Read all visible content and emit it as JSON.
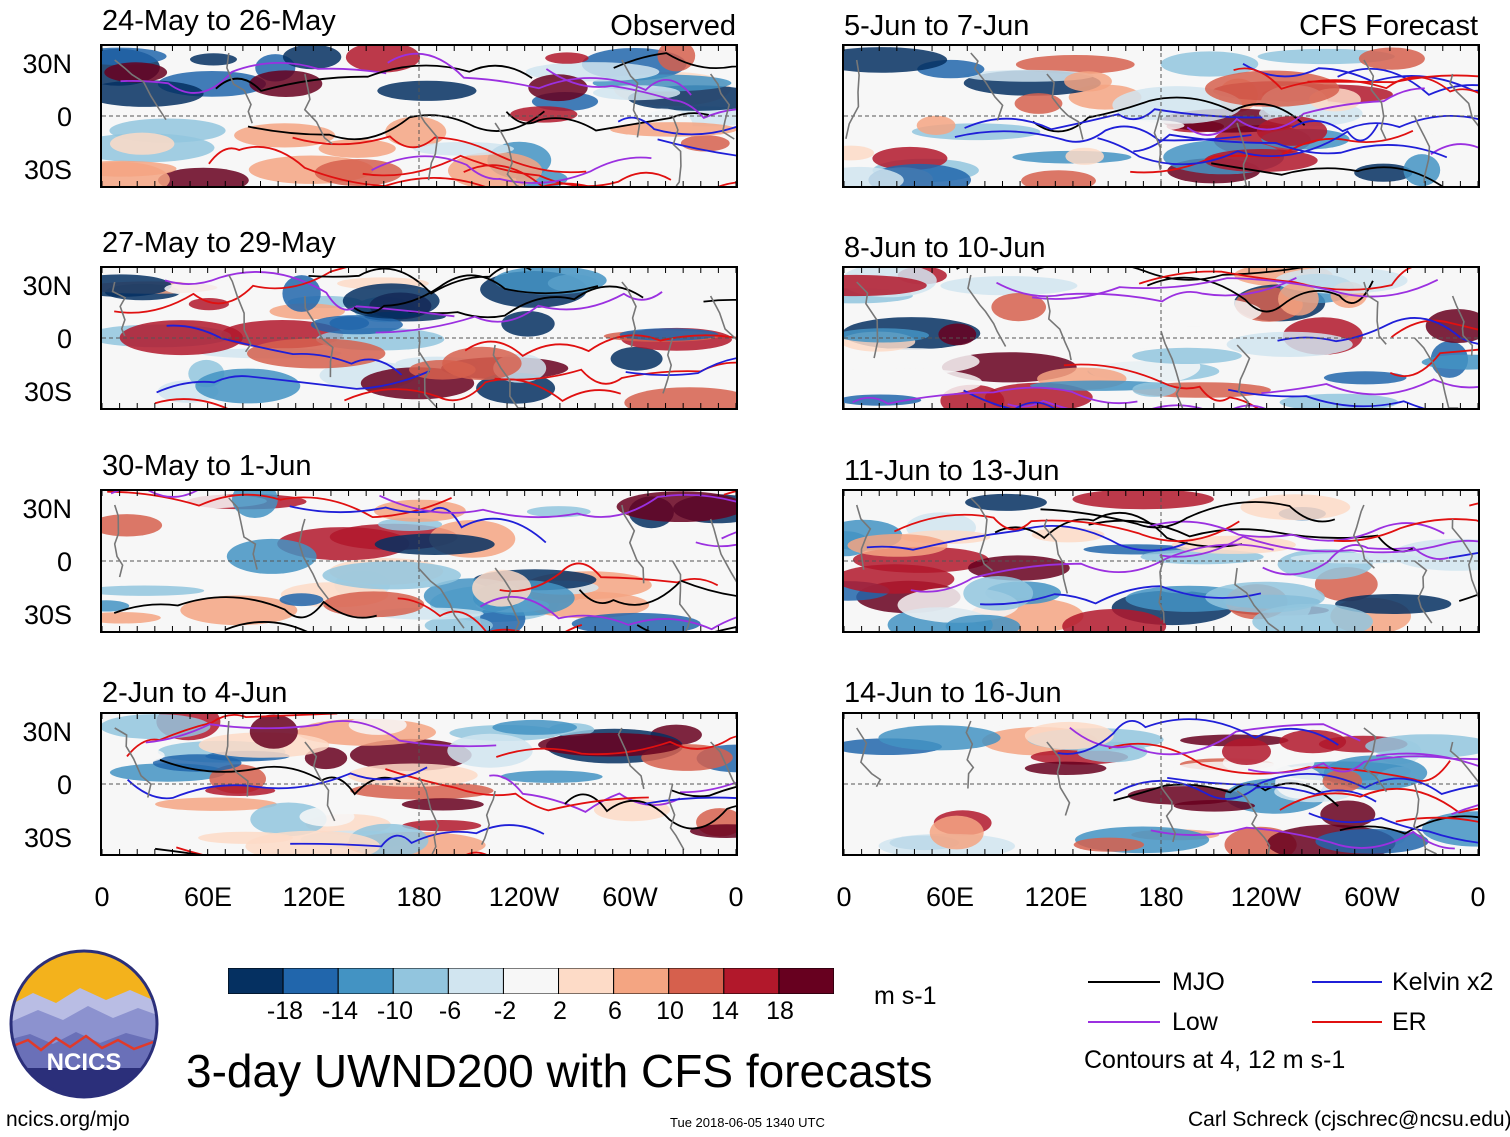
{
  "chart_data": {
    "type": "heatmap",
    "title": "3-day UWND200 with CFS forecasts",
    "units": "m s-1",
    "columns": [
      {
        "label": "Observed",
        "panels": [
          "24-May to 26-May",
          "27-May to 29-May",
          "30-May to 1-Jun",
          "2-Jun to 4-Jun"
        ]
      },
      {
        "label": "CFS Forecast",
        "panels": [
          "5-Jun to 7-Jun",
          "8-Jun to 10-Jun",
          "11-Jun to 13-Jun",
          "14-Jun to 16-Jun"
        ]
      }
    ],
    "lat_ticks": [
      "30N",
      "0",
      "30S"
    ],
    "lon_ticks": [
      "0",
      "60E",
      "120E",
      "180",
      "120W",
      "60W",
      "0"
    ],
    "colorbar": {
      "ticks": [
        "-18",
        "-14",
        "-10",
        "-6",
        "-2",
        "2",
        "6",
        "10",
        "14",
        "18"
      ],
      "colors": [
        "#053061",
        "#2166ac",
        "#4393c3",
        "#92c5de",
        "#d1e5f0",
        "#f7f7f7",
        "#fddbc7",
        "#f4a582",
        "#d6604d",
        "#b2182b",
        "#67001f"
      ]
    },
    "contour_legend": [
      {
        "label": "MJO",
        "color": "#000000"
      },
      {
        "label": "Kelvin x2",
        "color": "#1f1fd8"
      },
      {
        "label": "Low",
        "color": "#9b30e0"
      },
      {
        "label": "ER",
        "color": "#e01010"
      }
    ],
    "contour_note": "Contours at 4, 12 m s-1"
  },
  "logo": {
    "text": "NCICS"
  },
  "footer": {
    "url": "ncics.org/mjo",
    "timestamp": "Tue 2018-06-05 1340 UTC",
    "credit": "Carl Schreck (cjschrec@ncsu.edu)"
  }
}
